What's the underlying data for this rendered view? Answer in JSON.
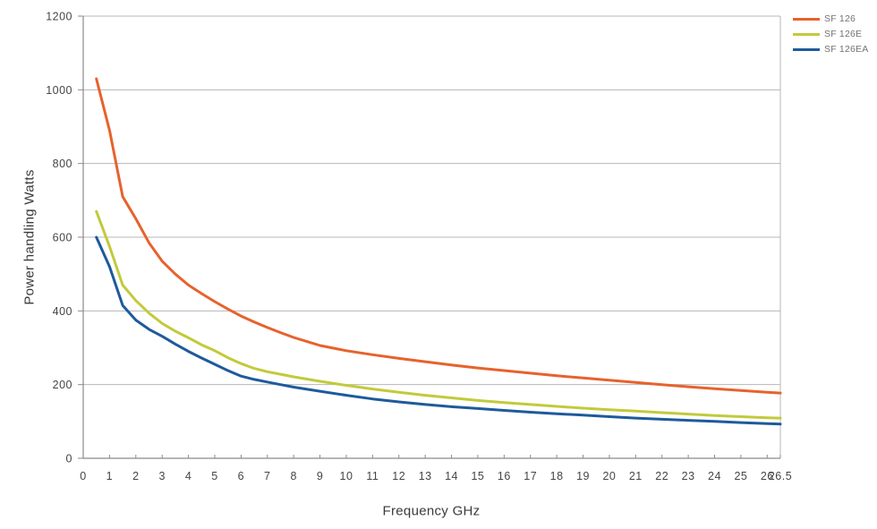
{
  "colors": {
    "background": "#ffffff",
    "grid": "#b7b7b7",
    "axis": "#8a8a8a",
    "tick_text": "#454545",
    "title_text": "#3a3a3a",
    "legend_text": "#717275"
  },
  "axes": {
    "y_title": "Power handling Watts",
    "x_title": "Frequency GHz"
  },
  "chart_data": {
    "type": "line",
    "title": "",
    "xlabel": "Frequency GHz",
    "ylabel": "Power handling Watts",
    "xlim": [
      0,
      26.5
    ],
    "ylim": [
      0,
      1200
    ],
    "x_ticks": [
      0,
      1,
      2,
      3,
      4,
      5,
      6,
      7,
      8,
      9,
      10,
      11,
      12,
      13,
      14,
      15,
      16,
      17,
      18,
      19,
      20,
      21,
      22,
      23,
      24,
      25,
      26,
      26.5
    ],
    "y_ticks": [
      0,
      200,
      400,
      600,
      800,
      1000,
      1200
    ],
    "grid": "horizontal",
    "legend_position": "top-right",
    "x": [
      0.5,
      1,
      1.5,
      2,
      2.5,
      3,
      3.5,
      4,
      4.5,
      5,
      5.5,
      6,
      6.5,
      7,
      7.5,
      8,
      9,
      10,
      11,
      12,
      13,
      14,
      15,
      16,
      17,
      18,
      19,
      20,
      21,
      22,
      23,
      24,
      25,
      26,
      26.5
    ],
    "series": [
      {
        "name": "SF 126",
        "color": "#e7622d",
        "values": [
          1030,
          890,
          710,
          650,
          585,
          535,
          500,
          470,
          447,
          425,
          405,
          386,
          370,
          355,
          341,
          328,
          306,
          292,
          281,
          271,
          262,
          253,
          245,
          238,
          231,
          224,
          218,
          212,
          206,
          200,
          194,
          189,
          184,
          179,
          177
        ]
      },
      {
        "name": "SF 126E",
        "color": "#c2ca3c",
        "values": [
          670,
          575,
          470,
          428,
          394,
          366,
          345,
          327,
          308,
          292,
          273,
          257,
          244,
          235,
          228,
          221,
          209,
          198,
          188,
          179,
          171,
          164,
          157,
          151,
          146,
          141,
          136,
          132,
          128,
          124,
          120,
          116,
          113,
          110,
          109
        ]
      },
      {
        "name": "SF 126EA",
        "color": "#1e5a9c",
        "values": [
          600,
          520,
          415,
          375,
          350,
          331,
          310,
          290,
          272,
          255,
          238,
          223,
          214,
          207,
          200,
          193,
          182,
          171,
          161,
          153,
          146,
          140,
          135,
          130,
          125,
          121,
          117,
          113,
          109,
          106,
          103,
          100,
          97,
          94,
          93
        ]
      }
    ]
  }
}
